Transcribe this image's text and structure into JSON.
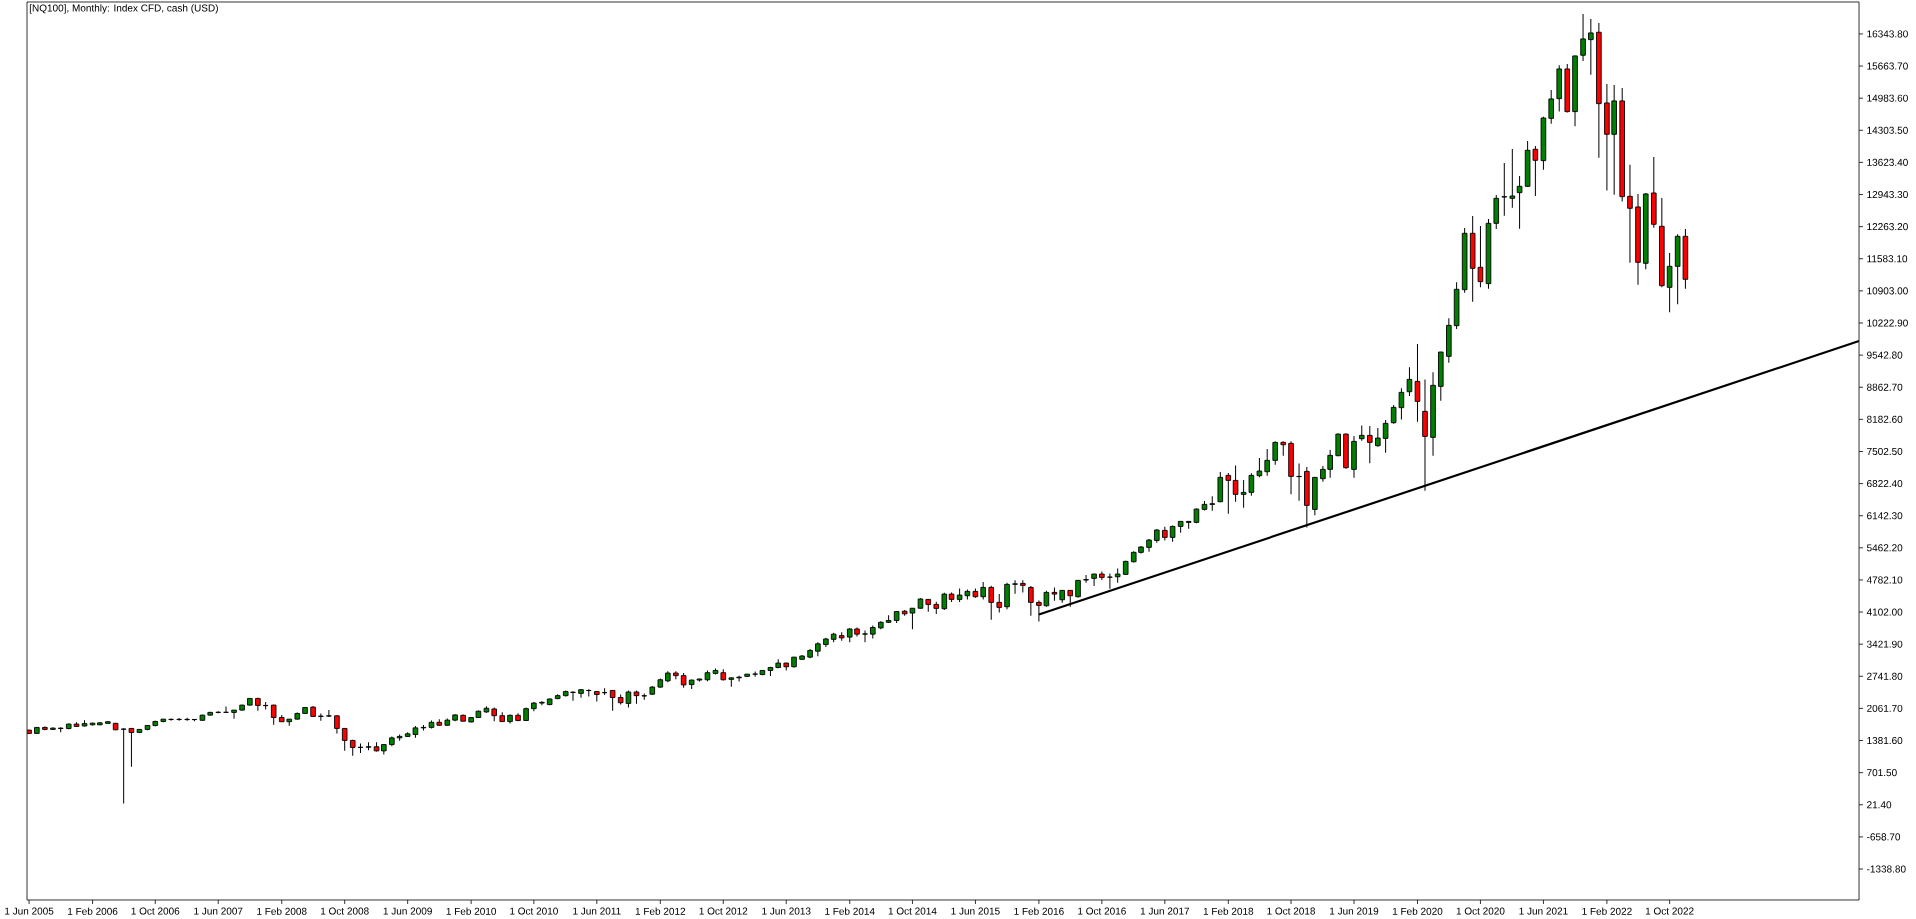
{
  "chart_data": {
    "type": "candlestick",
    "title": "[NQ100], Monthly: Index CFD, cash (USD)",
    "x": [
      "2005-06",
      "2005-07",
      "2005-08",
      "2005-09",
      "2005-10",
      "2005-11",
      "2005-12",
      "2006-01",
      "2006-02",
      "2006-03",
      "2006-04",
      "2006-05",
      "2006-06",
      "2006-07",
      "2006-08",
      "2006-09",
      "2006-10",
      "2006-11",
      "2006-12",
      "2007-01",
      "2007-02",
      "2007-03",
      "2007-04",
      "2007-05",
      "2007-06",
      "2007-07",
      "2007-08",
      "2007-09",
      "2007-10",
      "2007-11",
      "2007-12",
      "2008-01",
      "2008-02",
      "2008-03",
      "2008-04",
      "2008-05",
      "2008-06",
      "2008-07",
      "2008-08",
      "2008-09",
      "2008-10",
      "2008-11",
      "2008-12",
      "2009-01",
      "2009-02",
      "2009-03",
      "2009-04",
      "2009-05",
      "2009-06",
      "2009-07",
      "2009-08",
      "2009-09",
      "2009-10",
      "2009-11",
      "2009-12",
      "2010-01",
      "2010-02",
      "2010-03",
      "2010-04",
      "2010-05",
      "2010-06",
      "2010-07",
      "2010-08",
      "2010-09",
      "2010-10",
      "2010-11",
      "2010-12",
      "2011-01",
      "2011-02",
      "2011-03",
      "2011-04",
      "2011-05",
      "2011-06",
      "2011-07",
      "2011-08",
      "2011-09",
      "2011-10",
      "2011-11",
      "2011-12",
      "2012-01",
      "2012-02",
      "2012-03",
      "2012-04",
      "2012-05",
      "2012-06",
      "2012-07",
      "2012-08",
      "2012-09",
      "2012-10",
      "2012-11",
      "2012-12",
      "2013-01",
      "2013-02",
      "2013-03",
      "2013-04",
      "2013-05",
      "2013-06",
      "2013-07",
      "2013-08",
      "2013-09",
      "2013-10",
      "2013-11",
      "2013-12",
      "2014-01",
      "2014-02",
      "2014-03",
      "2014-04",
      "2014-05",
      "2014-06",
      "2014-07",
      "2014-08",
      "2014-09",
      "2014-10",
      "2014-11",
      "2014-12",
      "2015-01",
      "2015-02",
      "2015-03",
      "2015-04",
      "2015-05",
      "2015-06",
      "2015-07",
      "2015-08",
      "2015-09",
      "2015-10",
      "2015-11",
      "2015-12",
      "2016-01",
      "2016-02",
      "2016-03",
      "2016-04",
      "2016-05",
      "2016-06",
      "2016-07",
      "2016-08",
      "2016-09",
      "2016-10",
      "2016-11",
      "2016-12",
      "2017-01",
      "2017-02",
      "2017-03",
      "2017-04",
      "2017-05",
      "2017-06",
      "2017-07",
      "2017-08",
      "2017-09",
      "2017-10",
      "2017-11",
      "2017-12",
      "2018-01",
      "2018-02",
      "2018-03",
      "2018-04",
      "2018-05",
      "2018-06",
      "2018-07",
      "2018-08",
      "2018-09",
      "2018-10",
      "2018-11",
      "2018-12",
      "2019-01",
      "2019-02",
      "2019-03",
      "2019-04",
      "2019-05",
      "2019-06",
      "2019-07",
      "2019-08",
      "2019-09",
      "2019-10",
      "2019-11",
      "2019-12",
      "2020-01",
      "2020-02",
      "2020-03",
      "2020-04",
      "2020-05",
      "2020-06",
      "2020-07",
      "2020-08",
      "2020-09",
      "2020-10",
      "2020-11",
      "2020-12",
      "2021-01",
      "2021-02",
      "2021-03",
      "2021-04",
      "2021-05",
      "2021-06",
      "2021-07",
      "2021-08",
      "2021-09",
      "2021-10",
      "2021-11",
      "2021-12",
      "2022-01",
      "2022-02",
      "2022-03",
      "2022-04",
      "2022-05",
      "2022-06",
      "2022-07",
      "2022-08",
      "2022-09",
      "2022-10",
      "2022-11",
      "2022-12"
    ],
    "ohlc": [
      [
        1602,
        1610,
        1525,
        1532
      ],
      [
        1532,
        1665,
        1530,
        1659
      ],
      [
        1659,
        1680,
        1600,
        1617
      ],
      [
        1617,
        1660,
        1605,
        1645
      ],
      [
        1645,
        1660,
        1555,
        1635
      ],
      [
        1635,
        1740,
        1620,
        1730
      ],
      [
        1730,
        1770,
        1670,
        1680
      ],
      [
        1690,
        1810,
        1680,
        1740
      ],
      [
        1715,
        1760,
        1700,
        1750
      ],
      [
        1715,
        1770,
        1705,
        1757
      ],
      [
        1745,
        1790,
        1740,
        1780
      ],
      [
        1745,
        1760,
        1600,
        1610
      ],
      [
        1620,
        1640,
        49,
        1625
      ],
      [
        1638,
        1640,
        826,
        1553
      ],
      [
        1553,
        1620,
        1540,
        1617
      ],
      [
        1617,
        1710,
        1600,
        1701
      ],
      [
        1701,
        1800,
        1680,
        1786
      ],
      [
        1786,
        1840,
        1770,
        1835
      ],
      [
        1830,
        1850,
        1800,
        1828
      ],
      [
        1828,
        1860,
        1800,
        1830
      ],
      [
        1830,
        1865,
        1800,
        1825
      ],
      [
        1825,
        1840,
        1790,
        1828
      ],
      [
        1810,
        1930,
        1805,
        1920
      ],
      [
        1920,
        1990,
        1910,
        1977
      ],
      [
        1977,
        2000,
        1960,
        1980
      ],
      [
        1980,
        2103,
        1975,
        1978
      ],
      [
        1977,
        2030,
        1842,
        2026
      ],
      [
        2026,
        2140,
        2020,
        2132
      ],
      [
        2132,
        2280,
        2125,
        2273
      ],
      [
        2273,
        2290,
        2012,
        2125
      ],
      [
        2125,
        2195,
        2040,
        2120
      ],
      [
        2132,
        2140,
        1715,
        1870
      ],
      [
        1870,
        1920,
        1775,
        1780
      ],
      [
        1780,
        1835,
        1694,
        1835
      ],
      [
        1835,
        1975,
        1825,
        1955
      ],
      [
        1955,
        2085,
        1950,
        2082
      ],
      [
        2090,
        2105,
        1885,
        1892
      ],
      [
        1892,
        1955,
        1800,
        1900
      ],
      [
        1900,
        2030,
        1880,
        1905
      ],
      [
        1905,
        1915,
        1530,
        1638
      ],
      [
        1638,
        1640,
        1165,
        1384
      ],
      [
        1384,
        1400,
        1060,
        1235
      ],
      [
        1235,
        1320,
        1120,
        1240
      ],
      [
        1240,
        1344,
        1175,
        1250
      ],
      [
        1250,
        1344,
        1148,
        1163
      ],
      [
        1163,
        1300,
        1085,
        1297
      ],
      [
        1297,
        1469,
        1258,
        1438
      ],
      [
        1438,
        1510,
        1375,
        1469
      ],
      [
        1469,
        1556,
        1454,
        1524
      ],
      [
        1510,
        1689,
        1438,
        1650
      ],
      [
        1650,
        1712,
        1595,
        1660
      ],
      [
        1660,
        1807,
        1634,
        1767
      ],
      [
        1767,
        1830,
        1689,
        1705
      ],
      [
        1705,
        1846,
        1689,
        1814
      ],
      [
        1814,
        1940,
        1791,
        1924
      ],
      [
        1916,
        1935,
        1790,
        1791
      ],
      [
        1775,
        1870,
        1767,
        1869
      ],
      [
        1869,
        2018,
        1861,
        2003
      ],
      [
        1987,
        2105,
        1971,
        2065
      ],
      [
        2050,
        2081,
        1791,
        1908
      ],
      [
        1908,
        1979,
        1775,
        1783
      ],
      [
        1783,
        1935,
        1744,
        1916
      ],
      [
        1916,
        1960,
        1790,
        1806
      ],
      [
        1806,
        2081,
        1800,
        2057
      ],
      [
        2057,
        2199,
        2003,
        2175
      ],
      [
        2175,
        2214,
        2128,
        2191
      ],
      [
        2144,
        2270,
        2128,
        2261
      ],
      [
        2270,
        2363,
        2254,
        2332
      ],
      [
        2332,
        2442,
        2316,
        2418
      ],
      [
        2400,
        2426,
        2222,
        2405
      ],
      [
        2380,
        2473,
        2285,
        2458
      ],
      [
        2440,
        2465,
        2316,
        2442
      ],
      [
        2418,
        2430,
        2207,
        2356
      ],
      [
        2395,
        2489,
        2348,
        2397
      ],
      [
        2442,
        2450,
        2011,
        2293
      ],
      [
        2293,
        2356,
        2144,
        2183
      ],
      [
        2167,
        2442,
        2081,
        2410
      ],
      [
        2410,
        2442,
        2160,
        2332
      ],
      [
        2330,
        2379,
        2246,
        2325
      ],
      [
        2363,
        2536,
        2348,
        2513
      ],
      [
        2513,
        2693,
        2497,
        2669
      ],
      [
        2646,
        2850,
        2615,
        2811
      ],
      [
        2811,
        2850,
        2677,
        2756
      ],
      [
        2756,
        2811,
        2497,
        2560
      ],
      [
        2567,
        2670,
        2473,
        2662
      ],
      [
        2662,
        2690,
        2630,
        2685
      ],
      [
        2669,
        2865,
        2638,
        2818
      ],
      [
        2803,
        2905,
        2779,
        2866
      ],
      [
        2818,
        2889,
        2654,
        2669
      ],
      [
        2677,
        2720,
        2520,
        2709
      ],
      [
        2710,
        2756,
        2630,
        2724
      ],
      [
        2740,
        2790,
        2725,
        2787
      ],
      [
        2787,
        2842,
        2732,
        2790
      ],
      [
        2779,
        2870,
        2764,
        2865
      ],
      [
        2865,
        2944,
        2748,
        2928
      ],
      [
        2928,
        3101,
        2913,
        3022
      ],
      [
        3022,
        3030,
        2866,
        2944
      ],
      [
        2944,
        3148,
        2928,
        3148
      ],
      [
        3101,
        3195,
        3101,
        3171
      ],
      [
        3148,
        3320,
        3124,
        3289
      ],
      [
        3273,
        3462,
        3164,
        3430
      ],
      [
        3415,
        3556,
        3360,
        3532
      ],
      [
        3524,
        3665,
        3462,
        3634
      ],
      [
        3603,
        3673,
        3493,
        3556
      ],
      [
        3572,
        3760,
        3462,
        3744
      ],
      [
        3744,
        3775,
        3587,
        3634
      ],
      [
        3634,
        3713,
        3462,
        3640
      ],
      [
        3634,
        3815,
        3540,
        3775
      ],
      [
        3767,
        3909,
        3736,
        3885
      ],
      [
        3885,
        4034,
        3870,
        3924
      ],
      [
        3924,
        4125,
        3870,
        4113
      ],
      [
        4120,
        4144,
        4026,
        4065
      ],
      [
        4081,
        4190,
        3736,
        4183
      ],
      [
        4183,
        4395,
        4175,
        4379
      ],
      [
        4370,
        4380,
        4109,
        4264
      ],
      [
        4264,
        4321,
        4060,
        4180
      ],
      [
        4173,
        4511,
        4144,
        4483
      ],
      [
        4483,
        4518,
        4314,
        4370
      ],
      [
        4370,
        4603,
        4314,
        4462
      ],
      [
        4448,
        4582,
        4370,
        4540
      ],
      [
        4540,
        4603,
        4405,
        4427
      ],
      [
        4427,
        4737,
        4370,
        4624
      ],
      [
        4624,
        4660,
        3940,
        4307
      ],
      [
        4307,
        4483,
        4095,
        4201
      ],
      [
        4215,
        4723,
        4159,
        4688
      ],
      [
        4690,
        4773,
        4490,
        4700
      ],
      [
        4709,
        4773,
        4518,
        4667
      ],
      [
        4624,
        4652,
        4024,
        4307
      ],
      [
        4307,
        4349,
        3904,
        4243
      ],
      [
        4236,
        4554,
        4215,
        4518
      ],
      [
        4518,
        4624,
        4342,
        4483
      ],
      [
        4363,
        4565,
        4300,
        4561
      ],
      [
        4561,
        4570,
        4215,
        4448
      ],
      [
        4427,
        4780,
        4412,
        4773
      ],
      [
        4780,
        4885,
        4723,
        4790
      ],
      [
        4815,
        4915,
        4653,
        4907
      ],
      [
        4907,
        4963,
        4780,
        4836
      ],
      [
        4840,
        4921,
        4596,
        4843
      ],
      [
        4850,
        5027,
        4723,
        4907
      ],
      [
        4900,
        5190,
        4890,
        5175
      ],
      [
        5168,
        5387,
        5154,
        5366
      ],
      [
        5366,
        5500,
        5344,
        5479
      ],
      [
        5472,
        5648,
        5380,
        5627
      ],
      [
        5619,
        5860,
        5570,
        5839
      ],
      [
        5832,
        5909,
        5619,
        5683
      ],
      [
        5683,
        5937,
        5592,
        5916
      ],
      [
        5916,
        6030,
        5782,
        6022
      ],
      [
        6000,
        6030,
        5867,
        6022
      ],
      [
        6001,
        6297,
        5980,
        6283
      ],
      [
        6276,
        6453,
        6255,
        6382
      ],
      [
        6382,
        6552,
        6248,
        6396
      ],
      [
        6439,
        7067,
        6425,
        6954
      ],
      [
        6996,
        7046,
        6185,
        6890
      ],
      [
        6890,
        7208,
        6439,
        6594
      ],
      [
        6594,
        6898,
        6312,
        6636
      ],
      [
        6636,
        7039,
        6566,
        6996
      ],
      [
        6990,
        7364,
        6954,
        7088
      ],
      [
        7074,
        7554,
        6990,
        7314
      ],
      [
        7314,
        7717,
        7222,
        7695
      ],
      [
        7695,
        7717,
        7413,
        7646
      ],
      [
        7674,
        7717,
        6594,
        6975
      ],
      [
        6970,
        7250,
        6460,
        6975
      ],
      [
        7081,
        7173,
        5895,
        6361
      ],
      [
        6276,
        6960,
        6150,
        6954
      ],
      [
        6926,
        7194,
        6862,
        7124
      ],
      [
        7124,
        7533,
        6947,
        7420
      ],
      [
        7413,
        7885,
        7400,
        7871
      ],
      [
        7871,
        7885,
        7137,
        7159
      ],
      [
        7123,
        7829,
        6947,
        7716
      ],
      [
        7773,
        8055,
        7730,
        7843
      ],
      [
        7843,
        8041,
        7251,
        7695
      ],
      [
        7625,
        8000,
        7603,
        7787
      ],
      [
        7780,
        8168,
        7476,
        8098
      ],
      [
        8112,
        8486,
        8090,
        8436
      ],
      [
        8430,
        8839,
        8182,
        8754
      ],
      [
        8768,
        9284,
        8676,
        9029
      ],
      [
        8987,
        9778,
        8133,
        8563
      ],
      [
        8352,
        9029,
        6672,
        7822
      ],
      [
        7801,
        9178,
        7413,
        8903
      ],
      [
        8881,
        9615,
        8578,
        9608
      ],
      [
        9517,
        10322,
        9383,
        10173
      ],
      [
        10166,
        11084,
        10096,
        10936
      ],
      [
        10929,
        12235,
        10865,
        12122
      ],
      [
        12122,
        12489,
        10674,
        11381
      ],
      [
        11402,
        12277,
        10978,
        11098
      ],
      [
        11056,
        12425,
        10950,
        12333
      ],
      [
        12333,
        12934,
        12213,
        12863
      ],
      [
        12890,
        13611,
        12496,
        12898
      ],
      [
        12863,
        13908,
        12665,
        12912
      ],
      [
        12983,
        13336,
        12221,
        13117
      ],
      [
        13117,
        14077,
        13100,
        13880
      ],
      [
        13901,
        13972,
        12913,
        13668
      ],
      [
        13661,
        14592,
        13470,
        14564
      ],
      [
        14557,
        15157,
        14444,
        14967
      ],
      [
        14974,
        15680,
        14699,
        15602
      ],
      [
        15602,
        15708,
        14678,
        14699
      ],
      [
        14699,
        15880,
        14388,
        15878
      ],
      [
        15892,
        16767,
        15772,
        16238
      ],
      [
        16223,
        16662,
        15482,
        16365
      ],
      [
        16379,
        16577,
        13724,
        14868
      ],
      [
        14882,
        15285,
        13026,
        14219
      ],
      [
        14219,
        15264,
        12941,
        14925
      ],
      [
        14925,
        15200,
        12793,
        12898
      ],
      [
        12905,
        13576,
        11501,
        12652
      ],
      [
        12680,
        12955,
        11035,
        11508
      ],
      [
        11487,
        12977,
        11360,
        12955
      ],
      [
        12976,
        13739,
        12242,
        12313
      ],
      [
        12270,
        12870,
        10978,
        11013
      ],
      [
        10978,
        11705,
        10449,
        11423
      ],
      [
        11423,
        12100,
        10618,
        12058
      ],
      [
        12058,
        12214,
        10950,
        11148
      ]
    ],
    "colors": [
      "#ff0000",
      "#008000",
      "#ff0000",
      "#008000",
      "#ff0000",
      "#008000",
      "#ff0000",
      "#008000",
      "#008000",
      "#008000",
      "#008000",
      "#ff0000",
      "#008000",
      "#ff0000",
      "#008000",
      "#008000",
      "#008000",
      "#008000",
      "#ff0000",
      "#008000",
      "#ff0000",
      "#008000",
      "#008000",
      "#008000",
      "#008000",
      "#ff0000",
      "#008000",
      "#008000",
      "#008000",
      "#ff0000",
      "#ff0000",
      "#ff0000",
      "#ff0000",
      "#008000",
      "#008000",
      "#008000",
      "#ff0000",
      "#008000",
      "#008000",
      "#ff0000",
      "#ff0000",
      "#ff0000",
      "#008000",
      "#008000",
      "#ff0000",
      "#008000",
      "#008000",
      "#008000",
      "#008000",
      "#008000",
      "#008000",
      "#008000",
      "#ff0000",
      "#008000",
      "#008000",
      "#ff0000",
      "#008000",
      "#008000",
      "#008000",
      "#ff0000",
      "#ff0000",
      "#008000",
      "#ff0000",
      "#008000",
      "#008000",
      "#008000",
      "#008000",
      "#008000",
      "#008000",
      "#008000",
      "#008000",
      "#008000",
      "#ff0000",
      "#008000",
      "#ff0000",
      "#ff0000",
      "#008000",
      "#ff0000",
      "#ff0000",
      "#008000",
      "#008000",
      "#008000",
      "#ff0000",
      "#ff0000",
      "#008000",
      "#008000",
      "#008000",
      "#008000",
      "#ff0000",
      "#008000",
      "#008000",
      "#008000",
      "#008000",
      "#008000",
      "#008000",
      "#008000",
      "#ff0000",
      "#008000",
      "#008000",
      "#008000",
      "#008000",
      "#008000",
      "#008000",
      "#ff0000",
      "#008000",
      "#ff0000",
      "#008000",
      "#008000",
      "#008000",
      "#008000",
      "#008000",
      "#ff0000",
      "#008000",
      "#008000",
      "#ff0000",
      "#ff0000",
      "#008000",
      "#ff0000",
      "#008000",
      "#008000",
      "#ff0000",
      "#008000",
      "#ff0000",
      "#ff0000",
      "#008000",
      "#008000",
      "#ff0000",
      "#ff0000",
      "#ff0000",
      "#008000",
      "#ff0000",
      "#008000",
      "#ff0000",
      "#008000",
      "#008000",
      "#008000",
      "#ff0000",
      "#008000",
      "#008000",
      "#008000",
      "#008000",
      "#008000",
      "#008000",
      "#008000",
      "#ff0000",
      "#008000",
      "#008000",
      "#008000",
      "#008000",
      "#008000",
      "#008000",
      "#008000",
      "#ff0000",
      "#ff0000",
      "#008000",
      "#008000",
      "#008000",
      "#008000",
      "#008000",
      "#ff0000",
      "#ff0000",
      "#008000",
      "#ff0000",
      "#008000",
      "#008000",
      "#008000",
      "#008000",
      "#ff0000",
      "#008000",
      "#008000",
      "#ff0000",
      "#008000",
      "#008000",
      "#008000",
      "#008000",
      "#008000",
      "#ff0000",
      "#ff0000",
      "#008000",
      "#008000",
      "#008000",
      "#008000",
      "#008000",
      "#ff0000",
      "#ff0000",
      "#008000",
      "#008000",
      "#008000",
      "#008000",
      "#008000",
      "#008000",
      "#ff0000",
      "#008000",
      "#008000",
      "#008000",
      "#ff0000",
      "#008000",
      "#008000",
      "#008000",
      "#ff0000",
      "#ff0000",
      "#008000",
      "#ff0000",
      "#ff0000",
      "#ff0000",
      "#008000",
      "#ff0000",
      "#ff0000",
      "#008000",
      "#008000",
      "#ff0000"
    ],
    "series": [
      {
        "type": "line",
        "x": [
          "2016-02",
          "2024-10"
        ],
        "values": [
          4050,
          9840
        ],
        "color": "#000000"
      }
    ],
    "xlim": [
      "2005-05-24",
      "2024-10"
    ],
    "xticks": [
      {
        "value": "2005-06",
        "label": "1 Jun 2005"
      },
      {
        "value": "2006-02",
        "label": "1 Feb 2006"
      },
      {
        "value": "2006-10",
        "label": "1 Oct 2006"
      },
      {
        "value": "2007-06",
        "label": "1 Jun 2007"
      },
      {
        "value": "2008-02",
        "label": "1 Feb 2008"
      },
      {
        "value": "2008-10",
        "label": "1 Oct 2008"
      },
      {
        "value": "2009-06",
        "label": "1 Jun 2009"
      },
      {
        "value": "2010-02",
        "label": "1 Feb 2010"
      },
      {
        "value": "2010-10",
        "label": "1 Oct 2010"
      },
      {
        "value": "2011-06",
        "label": "1 Jun 2011"
      },
      {
        "value": "2012-02",
        "label": "1 Feb 2012"
      },
      {
        "value": "2012-10",
        "label": "1 Oct 2012"
      },
      {
        "value": "2013-06",
        "label": "1 Jun 2013"
      },
      {
        "value": "2014-02",
        "label": "1 Feb 2014"
      },
      {
        "value": "2014-10",
        "label": "1 Oct 2014"
      },
      {
        "value": "2015-06",
        "label": "1 Jun 2015"
      },
      {
        "value": "2016-02",
        "label": "1 Feb 2016"
      },
      {
        "value": "2016-10",
        "label": "1 Oct 2016"
      },
      {
        "value": "2017-06",
        "label": "1 Jun 2017"
      },
      {
        "value": "2018-02",
        "label": "1 Feb 2018"
      },
      {
        "value": "2018-10",
        "label": "1 Oct 2018"
      },
      {
        "value": "2019-06",
        "label": "1 Jun 2019"
      },
      {
        "value": "2020-02",
        "label": "1 Feb 2020"
      },
      {
        "value": "2020-10",
        "label": "1 Oct 2020"
      },
      {
        "value": "2021-06",
        "label": "1 Jun 2021"
      },
      {
        "value": "2022-02",
        "label": "1 Feb 2022"
      },
      {
        "value": "2022-10",
        "label": "1 Oct 2022"
      }
    ],
    "ylim": [
      -1995,
      17020
    ],
    "yticks": [
      {
        "value": 16343.8,
        "label": "16343.80"
      },
      {
        "value": 15663.7,
        "label": "15663.70"
      },
      {
        "value": 14983.6,
        "label": "14983.60"
      },
      {
        "value": 14303.5,
        "label": "14303.50"
      },
      {
        "value": 13623.4,
        "label": "13623.40"
      },
      {
        "value": 12943.3,
        "label": "12943.30"
      },
      {
        "value": 12263.2,
        "label": "12263.20"
      },
      {
        "value": 11583.1,
        "label": "11583.10"
      },
      {
        "value": 10903,
        "label": "10903.00"
      },
      {
        "value": 10222.9,
        "label": "10222.90"
      },
      {
        "value": 9542.8,
        "label": "9542.80"
      },
      {
        "value": 8862.7,
        "label": "8862.70"
      },
      {
        "value": 8182.6,
        "label": "8182.60"
      },
      {
        "value": 7502.5,
        "label": "7502.50"
      },
      {
        "value": 6822.4,
        "label": "6822.40"
      },
      {
        "value": 6142.3,
        "label": "6142.30"
      },
      {
        "value": 5462.2,
        "label": "5462.20"
      },
      {
        "value": 4782.1,
        "label": "4782.10"
      },
      {
        "value": 4102,
        "label": "4102.00"
      },
      {
        "value": 3421.9,
        "label": "3421.90"
      },
      {
        "value": 2741.8,
        "label": "2741.80"
      },
      {
        "value": 2061.7,
        "label": "2061.70"
      },
      {
        "value": 1381.6,
        "label": "1381.60"
      },
      {
        "value": 701.5,
        "label": "701.50"
      },
      {
        "value": 21.4,
        "label": "21.40"
      },
      {
        "value": -658.7,
        "label": "-658.70"
      },
      {
        "value": -1338.8,
        "label": "-1338.80"
      }
    ]
  }
}
